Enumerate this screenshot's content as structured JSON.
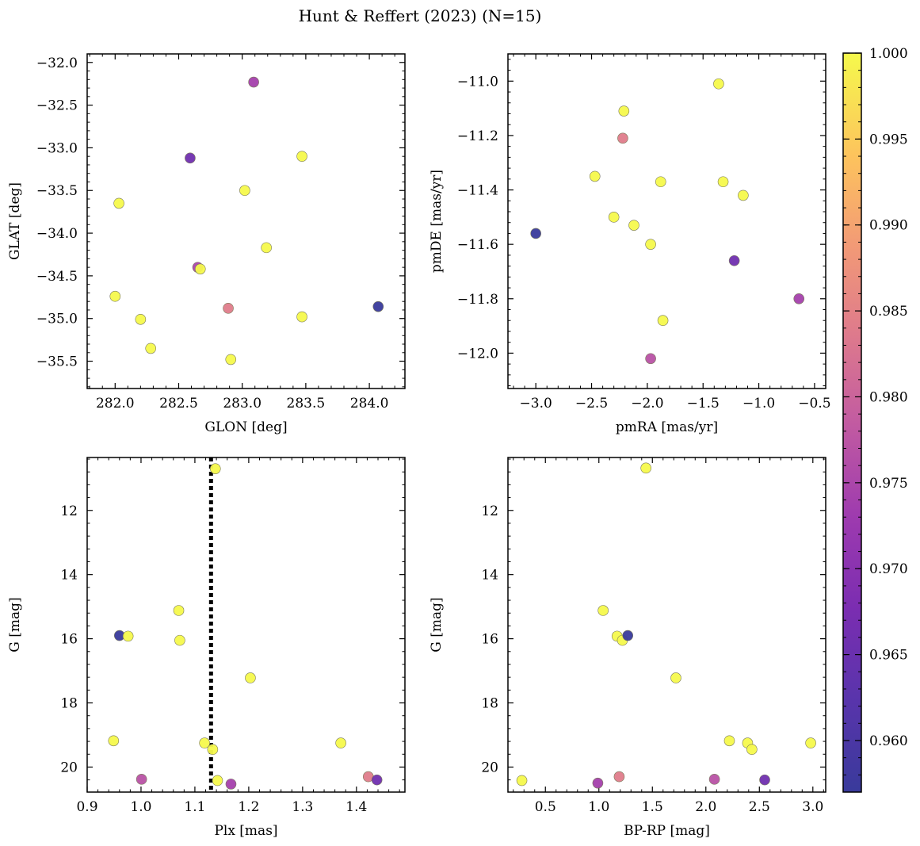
{
  "figure": {
    "title": "Hunt & Reffert (2023) (N=15)"
  },
  "colorbar": {
    "min": 0.957,
    "max": 1.0,
    "ticks": [
      0.96,
      0.965,
      0.97,
      0.975,
      0.98,
      0.985,
      0.99,
      0.995,
      1.0
    ],
    "tick_labels": [
      "0.960",
      "0.965",
      "0.970",
      "0.975",
      "0.980",
      "0.985",
      "0.990",
      "0.995",
      "1.000"
    ],
    "colormap": "plasma"
  },
  "chart_data": [
    {
      "type": "scatter",
      "id": "glon-glat",
      "xlabel": "GLON [deg]",
      "ylabel": "GLAT [deg]",
      "xlim": [
        281.78,
        284.28
      ],
      "ylim": [
        -35.82,
        -31.9
      ],
      "inverted_y": false,
      "x_ticks": [
        282.0,
        282.5,
        283.0,
        283.5,
        284.0
      ],
      "x_tick_labels": [
        "282.0",
        "282.5",
        "283.0",
        "283.5",
        "284.0"
      ],
      "y_ticks": [
        -32.0,
        -32.5,
        -33.0,
        -33.5,
        -34.0,
        -34.5,
        -35.0,
        -35.5
      ],
      "y_tick_labels": [
        "−32.0",
        "−32.5",
        "−33.0",
        "−33.5",
        "−34.0",
        "−34.5",
        "−35.0",
        "−35.5"
      ],
      "points": [
        {
          "x": 283.09,
          "y": -32.23,
          "c": 0.974
        },
        {
          "x": 282.59,
          "y": -33.12,
          "c": 0.966
        },
        {
          "x": 283.47,
          "y": -33.1,
          "c": 1.0
        },
        {
          "x": 283.02,
          "y": -33.5,
          "c": 1.0
        },
        {
          "x": 282.03,
          "y": -33.65,
          "c": 1.0
        },
        {
          "x": 283.19,
          "y": -34.17,
          "c": 1.0
        },
        {
          "x": 282.65,
          "y": -34.4,
          "c": 0.975
        },
        {
          "x": 282.67,
          "y": -34.42,
          "c": 1.0
        },
        {
          "x": 282.0,
          "y": -34.74,
          "c": 1.0
        },
        {
          "x": 284.07,
          "y": -34.86,
          "c": 0.957
        },
        {
          "x": 282.89,
          "y": -34.88,
          "c": 0.984
        },
        {
          "x": 283.47,
          "y": -34.98,
          "c": 1.0
        },
        {
          "x": 282.2,
          "y": -35.01,
          "c": 1.0
        },
        {
          "x": 282.28,
          "y": -35.35,
          "c": 1.0
        },
        {
          "x": 282.91,
          "y": -35.48,
          "c": 1.0
        }
      ]
    },
    {
      "type": "scatter",
      "id": "pmra-pmde",
      "xlabel": "pmRA [mas/yr]",
      "ylabel": "pmDE [mas/yr]",
      "xlim": [
        -3.25,
        -0.4
      ],
      "ylim": [
        -12.13,
        -10.9
      ],
      "inverted_y": false,
      "x_ticks": [
        -3.0,
        -2.5,
        -2.0,
        -1.5,
        -1.0,
        -0.5
      ],
      "x_tick_labels": [
        "−3.0",
        "−2.5",
        "−2.0",
        "−1.5",
        "−1.0",
        "−0.5"
      ],
      "y_ticks": [
        -11.0,
        -11.2,
        -11.4,
        -11.6,
        -11.8,
        -12.0
      ],
      "y_tick_labels": [
        "−11.0",
        "−11.2",
        "−11.4",
        "−11.6",
        "−11.8",
        "−12.0"
      ],
      "points": [
        {
          "x": -1.36,
          "y": -11.01,
          "c": 1.0
        },
        {
          "x": -2.21,
          "y": -11.11,
          "c": 1.0
        },
        {
          "x": -2.22,
          "y": -11.21,
          "c": 0.984
        },
        {
          "x": -2.47,
          "y": -11.35,
          "c": 1.0
        },
        {
          "x": -1.88,
          "y": -11.37,
          "c": 1.0
        },
        {
          "x": -1.32,
          "y": -11.37,
          "c": 1.0
        },
        {
          "x": -1.14,
          "y": -11.42,
          "c": 1.0
        },
        {
          "x": -2.3,
          "y": -11.5,
          "c": 1.0
        },
        {
          "x": -2.12,
          "y": -11.53,
          "c": 1.0
        },
        {
          "x": -3.0,
          "y": -11.56,
          "c": 0.957
        },
        {
          "x": -1.97,
          "y": -11.6,
          "c": 1.0
        },
        {
          "x": -1.22,
          "y": -11.66,
          "c": 0.966
        },
        {
          "x": -0.64,
          "y": -11.8,
          "c": 0.974
        },
        {
          "x": -1.86,
          "y": -11.88,
          "c": 1.0
        },
        {
          "x": -1.97,
          "y": -12.02,
          "c": 0.977
        }
      ]
    },
    {
      "type": "scatter",
      "id": "plx-g",
      "xlabel": "Plx [mas]",
      "ylabel": "G [mag]",
      "xlim": [
        0.9,
        1.49
      ],
      "ylim": [
        20.78,
        10.35
      ],
      "inverted_y": true,
      "vline": {
        "x": 1.13,
        "style": "dotted"
      },
      "x_ticks": [
        0.9,
        1.0,
        1.1,
        1.2,
        1.3,
        1.4
      ],
      "x_tick_labels": [
        "0.9",
        "1.0",
        "1.1",
        "1.2",
        "1.3",
        "1.4"
      ],
      "y_ticks": [
        12,
        14,
        16,
        18,
        20
      ],
      "y_tick_labels": [
        "12",
        "14",
        "16",
        "18",
        "20"
      ],
      "points": [
        {
          "x": 1.138,
          "y": 10.7,
          "c": 1.0
        },
        {
          "x": 1.07,
          "y": 15.12,
          "c": 1.0
        },
        {
          "x": 0.96,
          "y": 15.9,
          "c": 0.957
        },
        {
          "x": 0.976,
          "y": 15.92,
          "c": 1.0
        },
        {
          "x": 1.072,
          "y": 16.05,
          "c": 1.0
        },
        {
          "x": 1.203,
          "y": 17.22,
          "c": 1.0
        },
        {
          "x": 0.949,
          "y": 19.18,
          "c": 1.0
        },
        {
          "x": 1.118,
          "y": 19.25,
          "c": 1.0
        },
        {
          "x": 1.133,
          "y": 19.45,
          "c": 1.0
        },
        {
          "x": 1.371,
          "y": 19.25,
          "c": 1.0
        },
        {
          "x": 1.001,
          "y": 20.38,
          "c": 0.977
        },
        {
          "x": 1.142,
          "y": 20.42,
          "c": 1.0
        },
        {
          "x": 1.167,
          "y": 20.53,
          "c": 0.974
        },
        {
          "x": 1.422,
          "y": 20.3,
          "c": 0.984
        },
        {
          "x": 1.438,
          "y": 20.4,
          "c": 0.966
        }
      ]
    },
    {
      "type": "scatter",
      "id": "bprp-g",
      "xlabel": "BP-RP [mag]",
      "ylabel": "G [mag]",
      "xlim": [
        0.15,
        3.12
      ],
      "ylim": [
        20.78,
        10.35
      ],
      "inverted_y": true,
      "x_ticks": [
        0.5,
        1.0,
        1.5,
        2.0,
        2.5,
        3.0
      ],
      "x_tick_labels": [
        "0.5",
        "1.0",
        "1.5",
        "2.0",
        "2.5",
        "3.0"
      ],
      "y_ticks": [
        12,
        14,
        16,
        18,
        20
      ],
      "y_tick_labels": [
        "12",
        "14",
        "16",
        "18",
        "20"
      ],
      "points": [
        {
          "x": 1.44,
          "y": 10.68,
          "c": 1.0
        },
        {
          "x": 1.04,
          "y": 15.12,
          "c": 1.0
        },
        {
          "x": 1.17,
          "y": 15.92,
          "c": 1.0
        },
        {
          "x": 1.22,
          "y": 16.05,
          "c": 1.0
        },
        {
          "x": 1.27,
          "y": 15.9,
          "c": 0.957
        },
        {
          "x": 1.72,
          "y": 17.22,
          "c": 1.0
        },
        {
          "x": 2.22,
          "y": 19.18,
          "c": 1.0
        },
        {
          "x": 2.39,
          "y": 19.25,
          "c": 1.0
        },
        {
          "x": 2.43,
          "y": 19.45,
          "c": 1.0
        },
        {
          "x": 2.98,
          "y": 19.25,
          "c": 1.0
        },
        {
          "x": 0.28,
          "y": 20.42,
          "c": 1.0
        },
        {
          "x": 0.99,
          "y": 20.5,
          "c": 0.974
        },
        {
          "x": 1.19,
          "y": 20.3,
          "c": 0.984
        },
        {
          "x": 2.08,
          "y": 20.38,
          "c": 0.977
        },
        {
          "x": 2.55,
          "y": 20.4,
          "c": 0.966
        }
      ]
    }
  ]
}
